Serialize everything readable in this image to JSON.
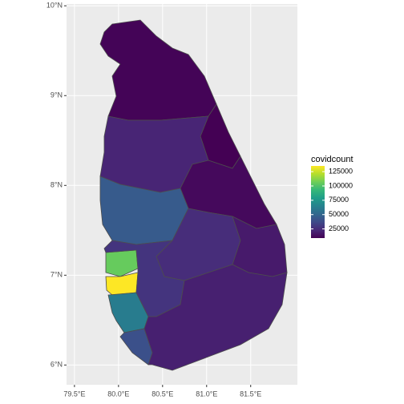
{
  "chart_data": {
    "type": "choropleth",
    "xlim": [
      79.41,
      82.03
    ],
    "xticks": [
      {
        "value": 79.5,
        "label": "79.5°E"
      },
      {
        "value": 80.0,
        "label": "80.0°E"
      },
      {
        "value": 80.5,
        "label": "80.5°E"
      },
      {
        "value": 81.0,
        "label": "81.0°E"
      },
      {
        "value": 81.5,
        "label": "81.5°E"
      }
    ],
    "ylim": [
      5.78,
      10.02
    ],
    "yticks": [
      {
        "value": 6,
        "label": "6°N"
      },
      {
        "value": 7,
        "label": "7°N"
      },
      {
        "value": 8,
        "label": "8°N"
      },
      {
        "value": 9,
        "label": "9°N"
      },
      {
        "value": 10,
        "label": "10°N"
      }
    ],
    "grid": true,
    "legend_title": "covidcount",
    "colorbar_lim": [
      9000,
      135000
    ],
    "colorbar_ticks": [
      25000,
      50000,
      75000,
      100000,
      125000
    ],
    "values": [
      10000,
      9000,
      22000,
      12000,
      45000,
      25000,
      18000,
      105000,
      135000,
      62000,
      40000,
      28000,
      20000
    ]
  }
}
